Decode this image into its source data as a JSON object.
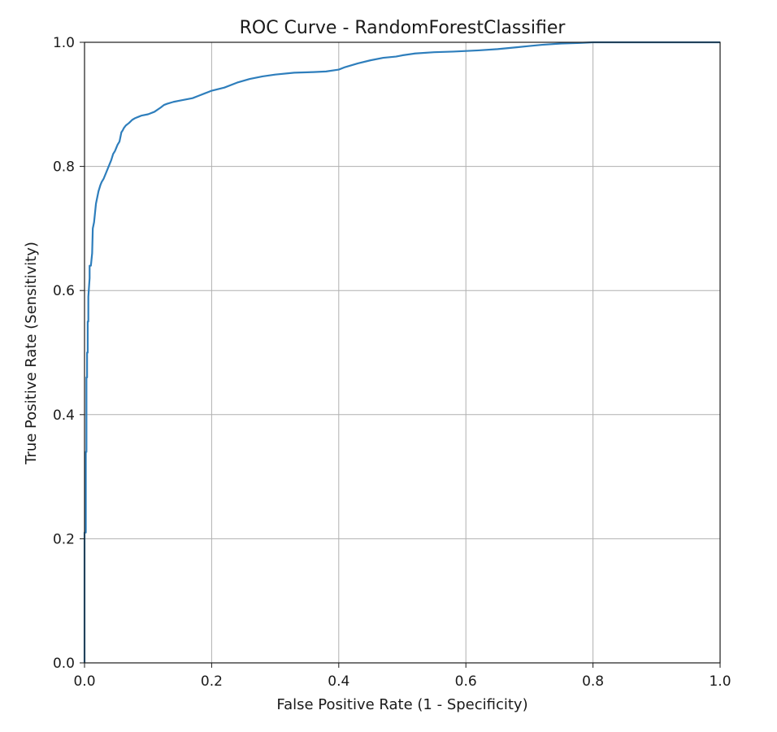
{
  "chart_data": {
    "type": "line",
    "title": "ROC Curve - RandomForestClassifier",
    "xlabel": "False Positive Rate (1 - Specificity)",
    "ylabel": "True Positive Rate (Sensitivity)",
    "xlim": [
      0.0,
      1.0
    ],
    "ylim": [
      0.0,
      1.0
    ],
    "xticks": [
      "0.0",
      "0.2",
      "0.4",
      "0.6",
      "0.8",
      "1.0"
    ],
    "yticks": [
      "0.0",
      "0.2",
      "0.4",
      "0.6",
      "0.8",
      "1.0"
    ],
    "grid": true,
    "line_color": "#2e7ebc",
    "series": [
      {
        "x": [
          0.0,
          0.0,
          0.002,
          0.002,
          0.003,
          0.003,
          0.004,
          0.004,
          0.005,
          0.005,
          0.006,
          0.006,
          0.008,
          0.008,
          0.01,
          0.012,
          0.013,
          0.015,
          0.016,
          0.018,
          0.02,
          0.022,
          0.025,
          0.027,
          0.03,
          0.034,
          0.038,
          0.042,
          0.045,
          0.048,
          0.05,
          0.052,
          0.055,
          0.058,
          0.06,
          0.062,
          0.065,
          0.07,
          0.075,
          0.08,
          0.085,
          0.09,
          0.1,
          0.11,
          0.12,
          0.125,
          0.13,
          0.14,
          0.15,
          0.16,
          0.17,
          0.18,
          0.19,
          0.2,
          0.22,
          0.24,
          0.26,
          0.28,
          0.3,
          0.33,
          0.36,
          0.38,
          0.4,
          0.41,
          0.43,
          0.45,
          0.47,
          0.49,
          0.5,
          0.52,
          0.55,
          0.58,
          0.6,
          0.62,
          0.65,
          0.68,
          0.7,
          0.72,
          0.75,
          0.78,
          0.8,
          0.85,
          0.9,
          1.0
        ],
        "y": [
          0.0,
          0.21,
          0.21,
          0.34,
          0.34,
          0.46,
          0.46,
          0.5,
          0.5,
          0.55,
          0.55,
          0.59,
          0.62,
          0.64,
          0.64,
          0.66,
          0.7,
          0.71,
          0.72,
          0.74,
          0.75,
          0.76,
          0.77,
          0.775,
          0.78,
          0.79,
          0.8,
          0.81,
          0.82,
          0.825,
          0.83,
          0.835,
          0.84,
          0.855,
          0.858,
          0.862,
          0.866,
          0.87,
          0.875,
          0.878,
          0.88,
          0.882,
          0.884,
          0.888,
          0.895,
          0.899,
          0.901,
          0.904,
          0.906,
          0.908,
          0.91,
          0.914,
          0.918,
          0.922,
          0.927,
          0.935,
          0.941,
          0.945,
          0.948,
          0.951,
          0.952,
          0.953,
          0.956,
          0.96,
          0.966,
          0.971,
          0.975,
          0.977,
          0.979,
          0.982,
          0.984,
          0.985,
          0.986,
          0.987,
          0.989,
          0.992,
          0.994,
          0.996,
          0.998,
          0.999,
          1.0,
          1.0,
          1.0,
          1.0
        ]
      }
    ]
  }
}
